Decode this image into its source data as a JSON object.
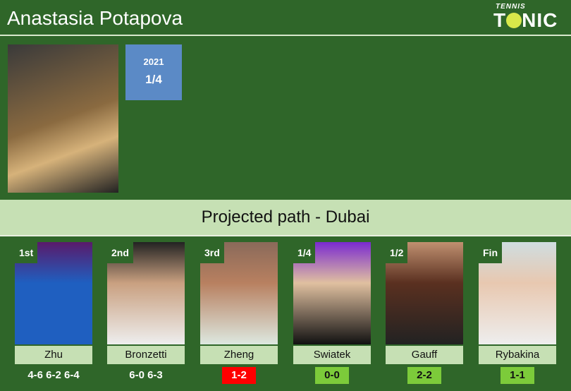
{
  "player": {
    "name": "Anastasia Potapova",
    "best_year": "2021",
    "best_result": "1/4"
  },
  "logo": {
    "small": "TENNIS",
    "big_left": "T",
    "big_right": "NIC"
  },
  "section_title": "Projected path - Dubai",
  "colors": {
    "loss": "#ff0000",
    "h2h": "#7ccb3a",
    "bg": "#2f6629",
    "light": "#c6e0b4",
    "badge": "#5b8ac6"
  },
  "path": [
    {
      "round": "1st",
      "name": "Zhu",
      "score": "4-6 6-2 6-4",
      "type": "result"
    },
    {
      "round": "2nd",
      "name": "Bronzetti",
      "score": "6-0 6-3",
      "type": "result"
    },
    {
      "round": "3rd",
      "name": "Zheng",
      "score": "1-2",
      "type": "loss"
    },
    {
      "round": "1/4",
      "name": "Swiatek",
      "score": "0-0",
      "type": "h2h"
    },
    {
      "round": "1/2",
      "name": "Gauff",
      "score": "2-2",
      "type": "h2h"
    },
    {
      "round": "Fin",
      "name": "Rybakina",
      "score": "1-1",
      "type": "h2h"
    }
  ]
}
